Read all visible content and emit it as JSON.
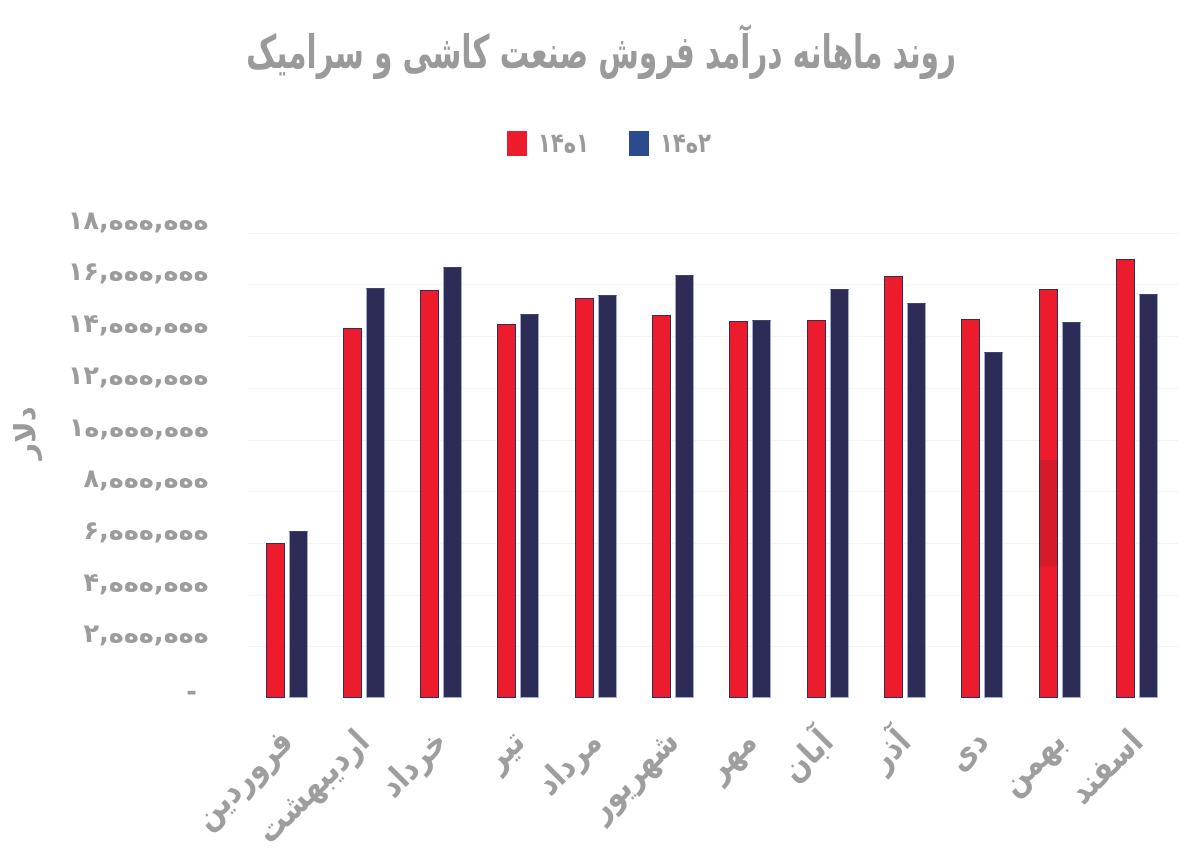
{
  "chart_data": {
    "type": "bar",
    "title": "روند ماهانه درآمد فروش صنعت کاشی و سرامیک",
    "ylabel": "دلار",
    "xlabel": "",
    "categories": [
      "فروردین",
      "اردیبهشت",
      "خرداد",
      "تیر",
      "مرداد",
      "شهریور",
      "مهر",
      "آبان",
      "آذر",
      "دی",
      "بهمن",
      "اسفند"
    ],
    "series": [
      {
        "name": "۱۴۰۱",
        "color": "#ec1c2c",
        "legend_color": "#ec1c2c",
        "values": [
          5990000,
          14320000,
          15800000,
          14480000,
          15480000,
          14800000,
          14590000,
          14620000,
          16340000,
          14680000,
          15820000,
          16980000
        ]
      },
      {
        "name": "۱۴۰۲",
        "color": "#2c2c56",
        "legend_color": "#2c4a8e",
        "values": [
          6460000,
          15880000,
          16680000,
          14870000,
          15600000,
          16380000,
          14640000,
          15840000,
          15290000,
          13370000,
          14530000,
          15610000
        ]
      }
    ],
    "ylim": [
      0,
      18000000
    ],
    "y_tick_step": 2000000,
    "y_tick_labels": [
      "-",
      "۲,۰۰۰,۰۰۰",
      "۴,۰۰۰,۰۰۰",
      "۶,۰۰۰,۰۰۰",
      "۸,۰۰۰,۰۰۰",
      "۱۰,۰۰۰,۰۰۰",
      "۱۲,۰۰۰,۰۰۰",
      "۱۴,۰۰۰,۰۰۰",
      "۱۶,۰۰۰,۰۰۰",
      "۱۸,۰۰۰,۰۰۰"
    ],
    "grid": "horizontal-faint",
    "legend_position": "top-center",
    "shaded_band": {
      "series": "۱۴۰۱",
      "category": "بهمن",
      "value_from": 5140000,
      "value_to": 9250000
    }
  },
  "colors": {
    "title_gray": "#9a9a9a",
    "axis_gray": "#9c9c9c",
    "bar_red": "#ec1c2c",
    "bar_navy": "#2c2c56",
    "legend_navy": "#2c4a8e",
    "gridline": "#f4f4f4"
  }
}
